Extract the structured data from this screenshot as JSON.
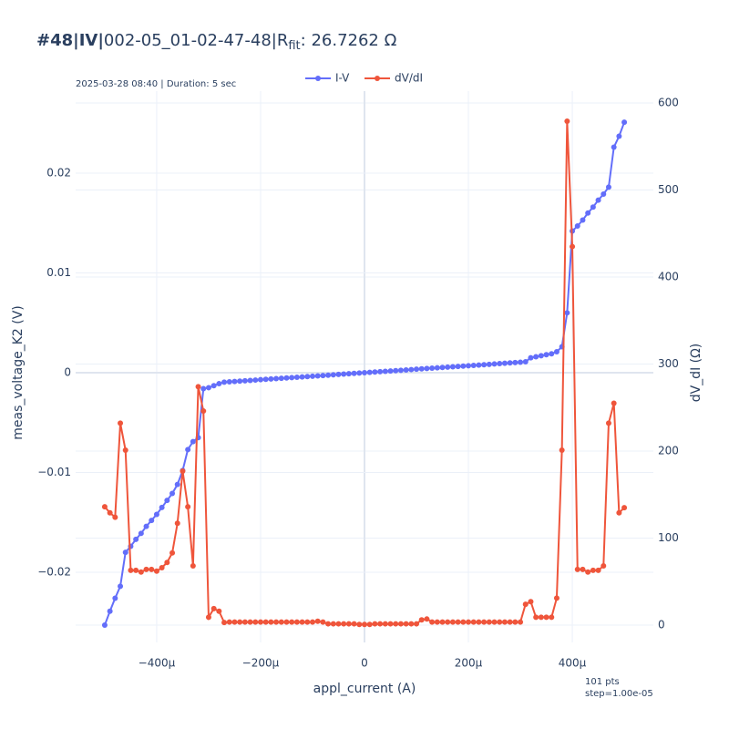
{
  "chart_data": {
    "type": "line",
    "title_parts": [
      "#48|IV|",
      "002-05_01-02-47-48|R",
      "fit",
      ": 26.7262 Ω"
    ],
    "subtitle": "2025-03-28 08:40 | Duration: 5 sec",
    "annotation": [
      "101 pts",
      "step=1.00e-05"
    ],
    "xlabel": "appl_current (A)",
    "ylabel": "meas_voltage_K2 (V)",
    "y2label": "dV_dI (Ω)",
    "x": [
      -0.0005,
      -0.00049,
      -0.00048,
      -0.00047,
      -0.00046,
      -0.00045,
      -0.00044,
      -0.00043,
      -0.00042,
      -0.00041,
      -0.0004,
      -0.00039,
      -0.00038,
      -0.00037,
      -0.00036,
      -0.00035,
      -0.00034,
      -0.00033,
      -0.00032,
      -0.00031,
      -0.0003,
      -0.00029,
      -0.00028,
      -0.00027,
      -0.00026,
      -0.00025,
      -0.00024,
      -0.00023,
      -0.00022,
      -0.00021,
      -0.0002,
      -0.00019,
      -0.00018,
      -0.00017,
      -0.00016,
      -0.00015,
      -0.00014,
      -0.00013,
      -0.00012,
      -0.00011,
      -0.0001,
      -9e-05,
      -8e-05,
      -7e-05,
      -6e-05,
      -5e-05,
      -4e-05,
      -3e-05,
      -2e-05,
      -1e-05,
      0,
      1e-05,
      2e-05,
      3e-05,
      4e-05,
      5e-05,
      6e-05,
      7e-05,
      8e-05,
      9e-05,
      0.0001,
      0.00011,
      0.00012,
      0.00013,
      0.00014,
      0.00015,
      0.00016,
      0.00017,
      0.00018,
      0.00019,
      0.0002,
      0.00021,
      0.00022,
      0.00023,
      0.00024,
      0.00025,
      0.00026,
      0.00027,
      0.00028,
      0.00029,
      0.0003,
      0.00031,
      0.00032,
      0.00033,
      0.00034,
      0.00035,
      0.00036,
      0.00037,
      0.00038,
      0.00039,
      0.0004,
      0.00041,
      0.00042,
      0.00043,
      0.00044,
      0.00045,
      0.00046,
      0.00047,
      0.00048,
      0.00049,
      0.0005
    ],
    "series": [
      {
        "name": "I-V",
        "color": "#636efa",
        "axis": "y",
        "values": [
          -0.0253,
          -0.0239,
          -0.0226,
          -0.0214,
          -0.018,
          -0.0174,
          -0.0167,
          -0.0161,
          -0.0154,
          -0.0148,
          -0.0142,
          -0.0135,
          -0.0128,
          -0.0121,
          -0.0112,
          -0.0098,
          -0.0077,
          -0.0069,
          -0.0065,
          -0.0016,
          -0.0015,
          -0.0013,
          -0.0011,
          -0.000945,
          -0.00091,
          -0.000875,
          -0.00084,
          -0.000805,
          -0.00077,
          -0.000735,
          -0.0007,
          -0.000665,
          -0.00063,
          -0.000595,
          -0.00056,
          -0.000525,
          -0.00049,
          -0.000455,
          -0.00042,
          -0.000385,
          -0.00035,
          -0.000315,
          -0.00028,
          -0.000245,
          -0.00021,
          -0.000175,
          -0.00014,
          -0.000105,
          -7e-05,
          -3.5e-05,
          0,
          3.5e-05,
          7e-05,
          0.000105,
          0.00014,
          0.000175,
          0.00021,
          0.000245,
          0.00028,
          0.000315,
          0.00035,
          0.000385,
          0.00042,
          0.000455,
          0.00049,
          0.000525,
          0.00056,
          0.000595,
          0.00063,
          0.000665,
          0.0007,
          0.000735,
          0.00077,
          0.000805,
          0.00084,
          0.000875,
          0.00091,
          0.000945,
          0.00098,
          0.001015,
          0.00105,
          0.0011,
          0.0015,
          0.0016,
          0.0017,
          0.0018,
          0.0019,
          0.0021,
          0.0026,
          0.006,
          0.0142,
          0.0147,
          0.0153,
          0.016,
          0.0166,
          0.0173,
          0.0179,
          0.0186,
          0.0226,
          0.0237,
          0.0251
        ]
      },
      {
        "name": "dV/dI",
        "color": "#ef553b",
        "axis": "y2",
        "values": [
          136,
          129,
          124,
          232,
          201,
          63,
          63,
          61,
          64,
          64,
          62,
          66,
          72,
          83,
          117,
          177,
          136,
          68,
          274,
          246,
          9,
          19,
          16,
          3,
          3.5,
          3.5,
          3.5,
          3.5,
          3.5,
          3.5,
          3.5,
          3.5,
          3.5,
          3.5,
          3.5,
          3.5,
          3.5,
          3.5,
          3.5,
          3.5,
          3.5,
          4.5,
          3.5,
          1.5,
          1.5,
          1.5,
          1.5,
          1.5,
          1.5,
          0.8,
          0.8,
          0.8,
          1.5,
          1.5,
          1.5,
          1.5,
          1.5,
          1.5,
          1.5,
          1.5,
          1.5,
          6,
          7,
          3.5,
          3.5,
          3.5,
          3.5,
          3.5,
          3.5,
          3.5,
          3.5,
          3.5,
          3.5,
          3.5,
          3.5,
          3.5,
          3.5,
          3.5,
          3.5,
          3.5,
          3.5,
          24,
          27,
          9,
          9,
          9,
          9,
          31,
          201,
          579,
          435,
          64,
          64,
          61,
          63,
          63,
          68,
          232,
          255,
          129,
          135
        ]
      }
    ],
    "xlim": [
      -0.000556,
      0.000556
    ],
    "xticks": [
      {
        "value": -0.0004,
        "label": "−400µ"
      },
      {
        "value": -0.0002,
        "label": "−200µ"
      },
      0,
      {
        "value": 0.0002,
        "label": "200µ"
      },
      {
        "value": 0.0004,
        "label": "400µ"
      }
    ],
    "ylim": [
      -0.02703,
      0.02822
    ],
    "yticks": [
      {
        "value": -0.02,
        "label": "−0.02"
      },
      {
        "value": -0.01,
        "label": "−0.01"
      },
      0,
      0.01,
      0.02
    ],
    "y2lim": [
      -19.9,
      613.6
    ],
    "y2ticks": [
      0,
      100,
      200,
      300,
      400,
      500,
      600
    ],
    "grid": true
  }
}
